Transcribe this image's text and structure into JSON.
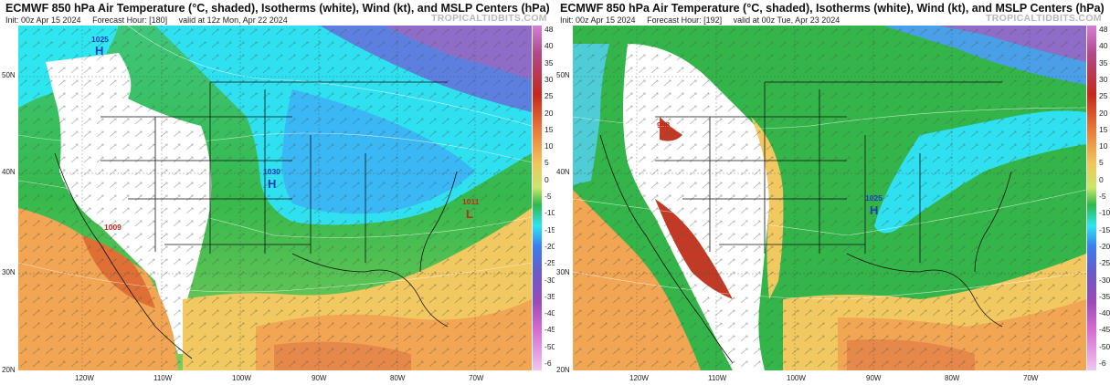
{
  "panels": [
    {
      "title": "ECMWF 850 hPa Air Temperature (°C, shaded), Isotherms (white), Wind (kt), and MSLP Centers (hPa)",
      "init": "Init: 00z Apr 15 2024",
      "forecast_hour": "Forecast Hour: [180]",
      "valid": "valid at 12z Mon, Apr 22 2024",
      "brand": "TROPICALTIDBITS.COM",
      "pressure_centers": [
        {
          "value": "1025",
          "letter": "H",
          "type": "high"
        },
        {
          "value": "1030",
          "letter": "H",
          "type": "high"
        },
        {
          "value": "1009",
          "letter": "",
          "type": "low"
        },
        {
          "value": "1011",
          "letter": "L",
          "type": "low"
        }
      ]
    },
    {
      "title": "ECMWF 850 hPa Air Temperature (°C, shaded), Isotherms (white), Wind (kt), and MSLP Centers (hPa)",
      "init": "Init: 00z Apr 15 2024",
      "forecast_hour": "Forecast Hour: [192]",
      "valid": "valid at 00z Tue, Apr 23 2024",
      "brand": "TROPICALTIDBITS.COM",
      "pressure_centers": [
        {
          "value": "998",
          "letter": "",
          "type": "low"
        },
        {
          "value": "1025",
          "letter": "H",
          "type": "high"
        }
      ]
    }
  ],
  "latitude_labels": [
    "50N",
    "40N",
    "30N",
    "20N"
  ],
  "longitude_labels": [
    "120W",
    "110W",
    "100W",
    "90W",
    "80W",
    "70W"
  ],
  "colorbar_labels": [
    "48",
    "40",
    "35",
    "30",
    "25",
    "20",
    "15",
    "10",
    "5",
    "0",
    "-5",
    "-10",
    "-15",
    "-20",
    "-25",
    "-30",
    "-35",
    "-40",
    "-45",
    "-50",
    "-6"
  ],
  "colors": {
    "land_white": "#ffffff",
    "cold_cyan": "#2ee6f0",
    "cool_blue": "#3fa9f5",
    "green": "#2fb84a",
    "light_green": "#8fd46a",
    "yellow": "#f2dc6b",
    "orange": "#f2a552",
    "dark_orange": "#e06f36",
    "red": "#c23a25",
    "purple": "#8e4bb5",
    "high_label": "#1b3fb8",
    "low_label": "#c0281c"
  }
}
